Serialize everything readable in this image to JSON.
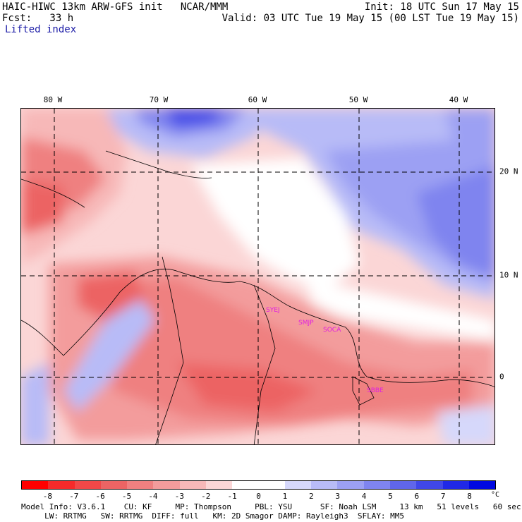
{
  "header": {
    "model_line": "HAIC-HIWC 13km ARW-GFS init   NCAR/MMM",
    "init_line": "Init: 18 UTC Sun 17 May 15",
    "fcst_line": "Fcst:   33 h",
    "valid_line": "Valid: 03 UTC Tue 19 May 15 (00 LST Tue 19 May 15)",
    "field_name": "Lifted index"
  },
  "map": {
    "lon_labels": [
      "80 W",
      "70 W",
      "60 W",
      "50 W",
      "40 W"
    ],
    "lat_labels": [
      "20 N",
      "10 N",
      "0"
    ],
    "stations": [
      "SYEJ",
      "SMJP",
      "SOCA",
      "SBBE"
    ],
    "station_color": "#e020e0"
  },
  "colorbar": {
    "ticks": [
      "-8",
      "-7",
      "-6",
      "-5",
      "-4",
      "-3",
      "-2",
      "-1",
      "0",
      "1",
      "2",
      "3",
      "4",
      "5",
      "6",
      "7",
      "8"
    ],
    "unit": "°C",
    "colors": [
      "#ff0000",
      "#f52a2a",
      "#f04848",
      "#ec6464",
      "#ef8080",
      "#f39c9c",
      "#f7b8b8",
      "#fbd6d6",
      "#ffffff",
      "#ffffff",
      "#d6d8fb",
      "#b8bbf7",
      "#9ca0f3",
      "#7f84ef",
      "#6066eb",
      "#4047e8",
      "#2028e6",
      "#0008e2"
    ]
  },
  "footer": {
    "line1": "Model Info: V3.6.1    CU: KF     MP: Thompson     PBL: YSU      SF: Noah LSM     13 km   51 levels   60 sec",
    "line2": "     LW: RRTMG   SW: RRTMG  DIFF: full   KM: 2D Smagor DAMP: Rayleigh3  SFLAY: MM5"
  }
}
